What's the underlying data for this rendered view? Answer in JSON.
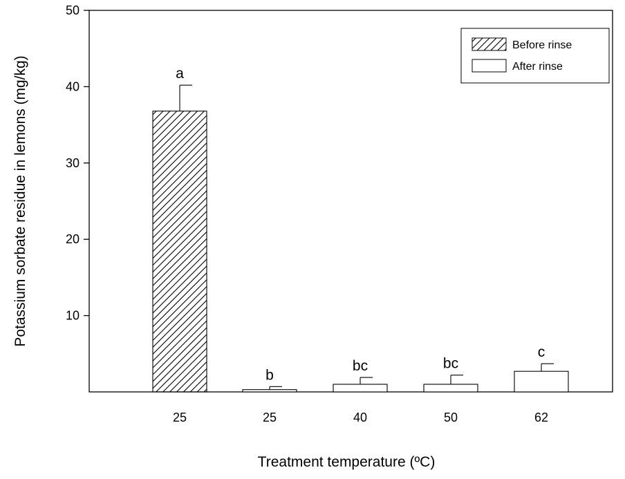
{
  "chart_data": {
    "type": "bar",
    "title": "",
    "xlabel": "Treatment temperature (ºC)",
    "ylabel": "Potassium sorbate residue in lemons (mg/kg)",
    "ylim": [
      0,
      50
    ],
    "yticks": [
      10,
      20,
      30,
      40,
      50
    ],
    "grid": false,
    "legend_position": "top-right",
    "legend": [
      {
        "name": "Before rinse",
        "pattern": "hatched"
      },
      {
        "name": "After rinse",
        "pattern": "open"
      }
    ],
    "categories": [
      "25",
      "25",
      "40",
      "50",
      "62"
    ],
    "bars": [
      {
        "category": "25",
        "group": "Before rinse",
        "value": 36.8,
        "error": 3.4,
        "label": "a"
      },
      {
        "category": "25",
        "group": "After rinse",
        "value": 0.3,
        "error": 0.4,
        "label": "b"
      },
      {
        "category": "40",
        "group": "After rinse",
        "value": 1.0,
        "error": 0.9,
        "label": "bc"
      },
      {
        "category": "50",
        "group": "After rinse",
        "value": 1.0,
        "error": 1.2,
        "label": "bc"
      },
      {
        "category": "62",
        "group": "After rinse",
        "value": 2.7,
        "error": 1.0,
        "label": "c"
      }
    ]
  }
}
